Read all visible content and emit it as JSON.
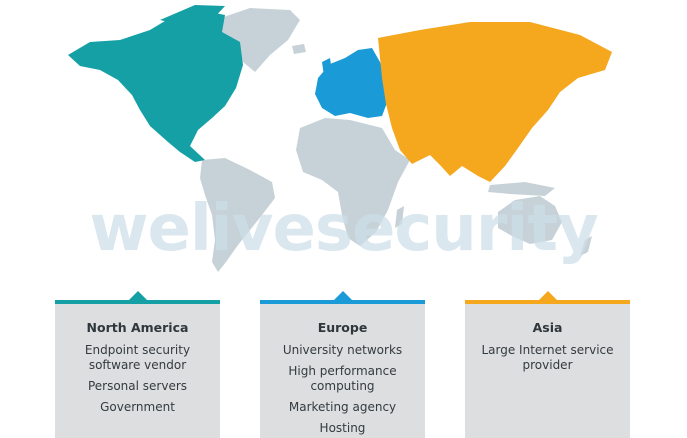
{
  "watermark": "welivesecurity",
  "colors": {
    "north_america": "#14a0a5",
    "europe": "#1a9ad6",
    "asia": "#f5a71d",
    "other_land": "#c7d2d8",
    "card_bg": "#dcdedf"
  },
  "regions": [
    {
      "title": "North America",
      "items": [
        "Endpoint security software vendor",
        "Personal servers",
        "Government"
      ]
    },
    {
      "title": "Europe",
      "items": [
        "University networks",
        "High performance computing",
        "Marketing agency",
        "Hosting"
      ]
    },
    {
      "title": "Asia",
      "items": [
        "Large Internet service provider"
      ]
    }
  ]
}
